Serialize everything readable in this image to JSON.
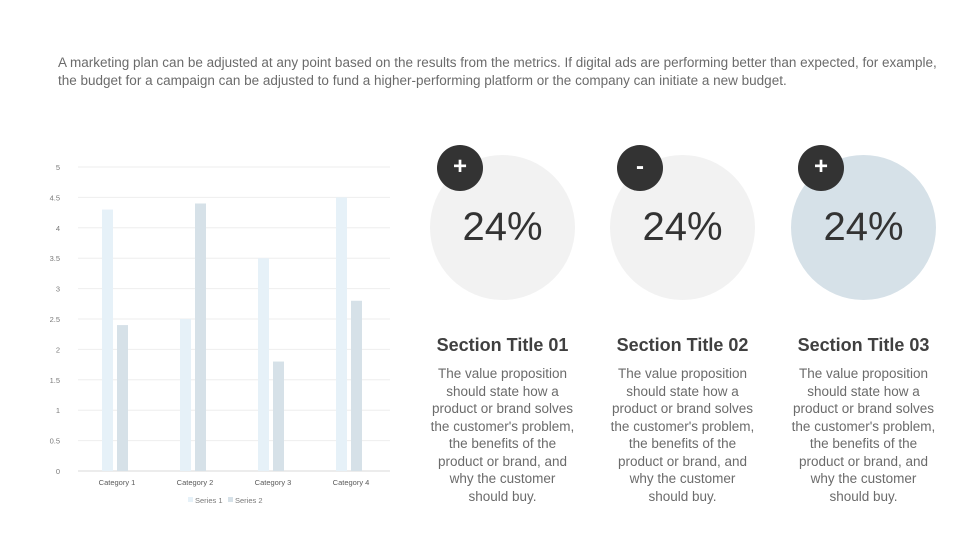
{
  "intro_text": "A marketing plan can be adjusted at any point based on the results from the metrics. If digital ads are performing better than expected, for example, the budget for a campaign can be adjusted to fund a higher-performing platform or the company can initiate a new budget.",
  "chart_data": {
    "type": "bar",
    "categories": [
      "Category 1",
      "Category 2",
      "Category 3",
      "Category 4"
    ],
    "series": [
      {
        "name": "Series 1",
        "values": [
          4.3,
          2.5,
          3.5,
          4.5
        ],
        "color": "#e6f1f8"
      },
      {
        "name": "Series 2",
        "values": [
          2.4,
          4.4,
          1.8,
          2.8
        ],
        "color": "#d6e1e8"
      }
    ],
    "ylim": [
      0,
      5
    ],
    "yticks": [
      "0",
      "0.5",
      "1",
      "1.5",
      "2",
      "2.5",
      "3",
      "3.5",
      "4",
      "4.5",
      "5"
    ],
    "grid": true,
    "legend": "bottom"
  },
  "stats": [
    {
      "badge": "+",
      "value": "24%",
      "title": "Section Title 01",
      "desc": "The value proposition should state how a product or brand solves the customer's problem, the benefits of the product or brand, and why the customer should buy.",
      "circle_color": "#f2f2f2"
    },
    {
      "badge": "-",
      "value": "24%",
      "title": "Section Title 02",
      "desc": "The value proposition should state how a product or brand solves the customer's problem, the benefits of the product or brand, and why the customer should buy.",
      "circle_color": "#f2f2f2"
    },
    {
      "badge": "+",
      "value": "24%",
      "title": "Section Title 03",
      "desc": "The value proposition should state how a product or brand solves the customer's problem, the benefits of the product or brand, and why the customer should buy.",
      "circle_color": "#d6e1e8"
    }
  ]
}
